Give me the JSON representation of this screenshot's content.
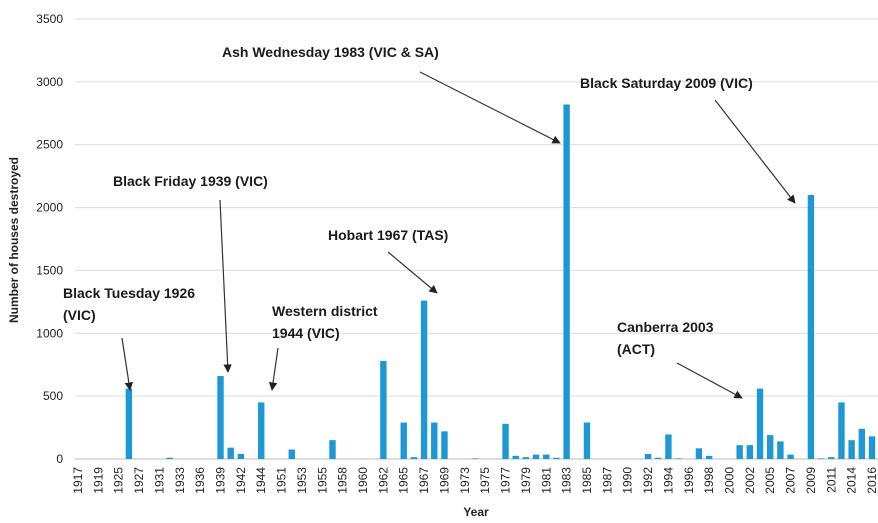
{
  "chart_data": {
    "type": "bar",
    "x_label": "Year",
    "y_label": "Number of houses destroyed",
    "categories": [
      "1917",
      null,
      "1919",
      null,
      "1925",
      null,
      "1927",
      null,
      "1931",
      null,
      "1933",
      null,
      "1936",
      null,
      "1939",
      null,
      "1942",
      null,
      "1944",
      null,
      "1951",
      null,
      "1953",
      null,
      "1955",
      null,
      "1958",
      null,
      "1960",
      null,
      "1962",
      null,
      "1965",
      null,
      "1967",
      null,
      "1969",
      null,
      "1973",
      null,
      "1975",
      null,
      "1977",
      null,
      "1979",
      null,
      "1981",
      null,
      "1983",
      null,
      "1985",
      null,
      "1987",
      null,
      "1990",
      null,
      "1992",
      null,
      "1994",
      null,
      "1996",
      null,
      "1998",
      null,
      "2000",
      null,
      "2002",
      null,
      "2005",
      null,
      "2007",
      null,
      "2009",
      null,
      "2011",
      null,
      "2014",
      null,
      "2016"
    ],
    "values": [
      0,
      0,
      0,
      0,
      0,
      560,
      0,
      0,
      0,
      10,
      0,
      0,
      0,
      0,
      660,
      90,
      40,
      0,
      450,
      0,
      0,
      75,
      0,
      0,
      0,
      150,
      0,
      0,
      0,
      0,
      780,
      0,
      290,
      15,
      1260,
      290,
      220,
      0,
      0,
      5,
      0,
      0,
      280,
      25,
      15,
      35,
      35,
      10,
      2820,
      0,
      290,
      0,
      0,
      0,
      0,
      0,
      40,
      10,
      195,
      5,
      0,
      85,
      25,
      0,
      0,
      110,
      110,
      560,
      190,
      140,
      35,
      0,
      2100,
      5,
      15,
      450,
      150,
      240,
      180
    ],
    "color": "#1e98d4",
    "ylim": [
      0,
      3500
    ],
    "yticks": [
      0,
      500,
      1000,
      1500,
      2000,
      2500,
      3000,
      3500
    ],
    "grid": true,
    "annotations": [
      [
        "Black Tuesday 1926",
        "(VIC)"
      ],
      [
        "Black Friday 1939 (VIC)"
      ],
      [
        "Western district",
        "1944 (VIC)"
      ],
      [
        "Hobart 1967 (TAS)"
      ],
      [
        "Ash Wednesday 1983 (VIC & SA)"
      ],
      [
        "Black Saturday 2009 (VIC)"
      ],
      [
        "Canberra 2003",
        "(ACT)"
      ]
    ]
  }
}
